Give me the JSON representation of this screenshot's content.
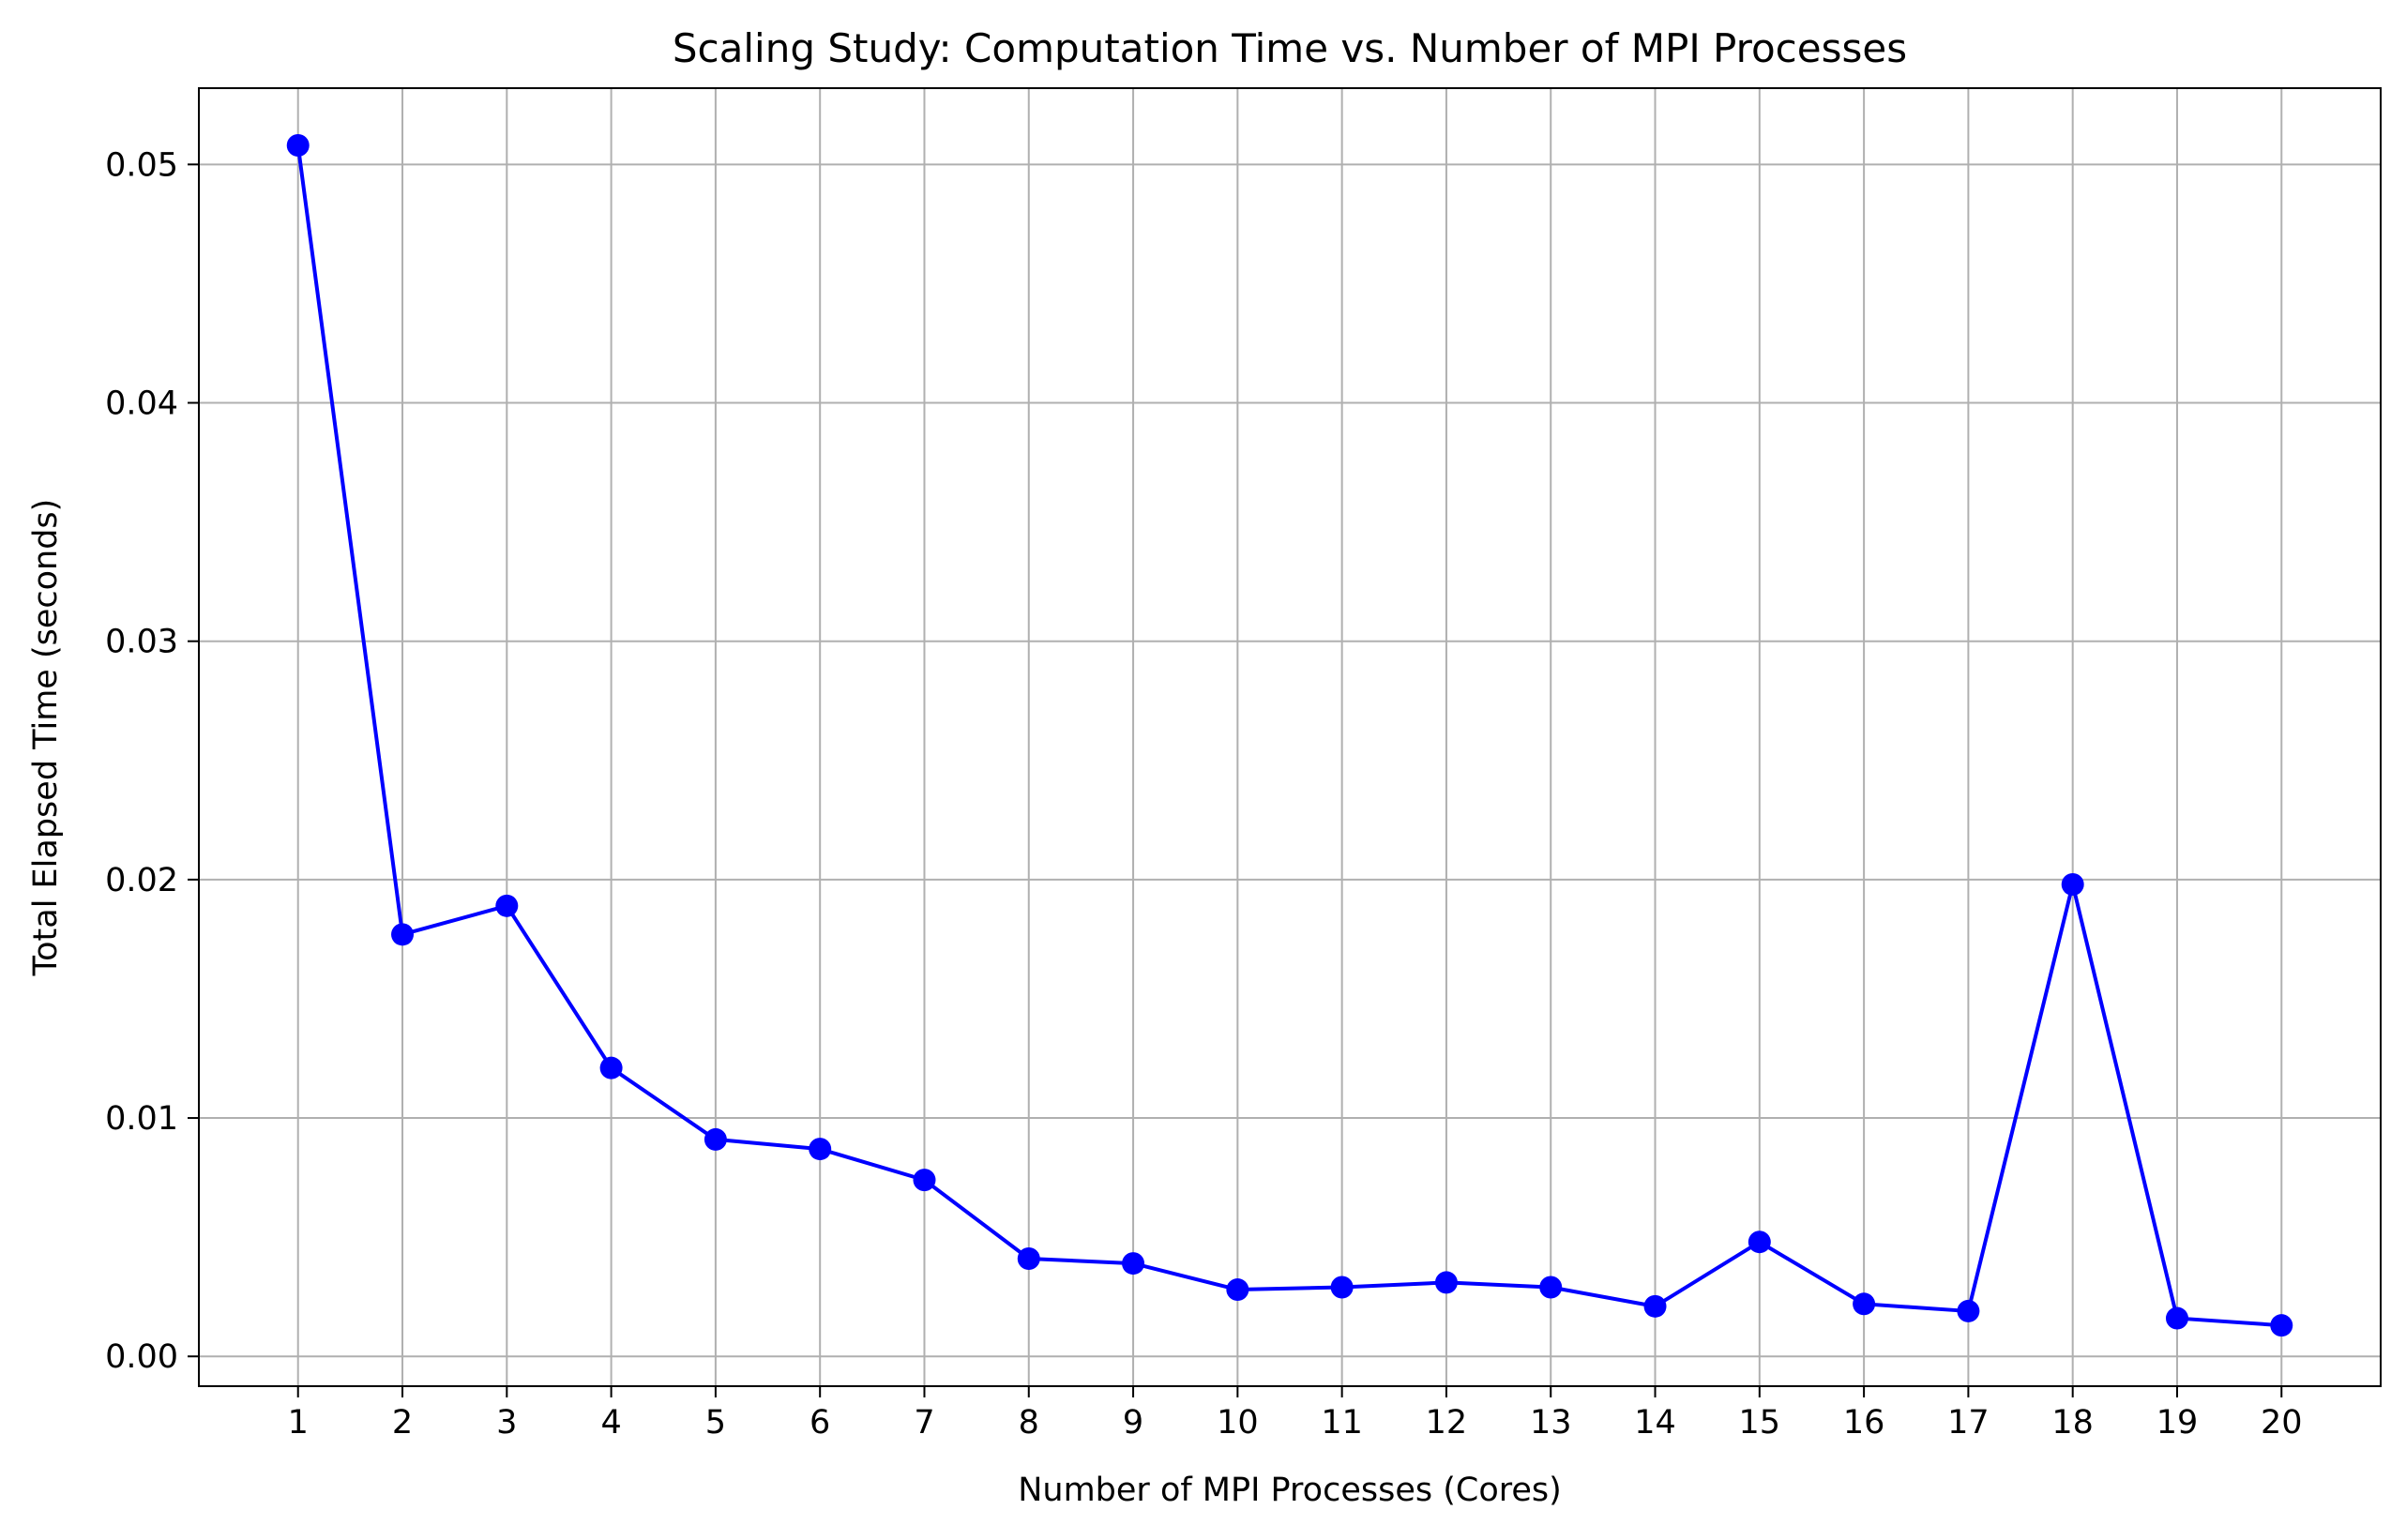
{
  "chart_data": {
    "type": "line",
    "title": "Scaling Study: Computation Time vs. Number of MPI Processes",
    "xlabel": "Number of MPI Processes (Cores)",
    "ylabel": "Total Elapsed Time (seconds)",
    "x": [
      1,
      2,
      3,
      4,
      5,
      6,
      7,
      8,
      9,
      10,
      11,
      12,
      13,
      14,
      15,
      16,
      17,
      18,
      19,
      20
    ],
    "x_tick_labels": [
      "1",
      "2",
      "3",
      "4",
      "5",
      "6",
      "7",
      "8",
      "9",
      "10",
      "11",
      "12",
      "13",
      "14",
      "15",
      "16",
      "17",
      "18",
      "19",
      "20"
    ],
    "y_ticks": [
      0.0,
      0.01,
      0.02,
      0.03,
      0.04,
      0.05
    ],
    "y_tick_labels": [
      "0.00",
      "0.01",
      "0.02",
      "0.03",
      "0.04",
      "0.05"
    ],
    "series": [
      {
        "values": [
          0.0508,
          0.0177,
          0.0189,
          0.0121,
          0.0091,
          0.0087,
          0.0074,
          0.0041,
          0.0039,
          0.0028,
          0.0029,
          0.0031,
          0.0029,
          0.0021,
          0.0048,
          0.0022,
          0.0019,
          0.0198,
          0.0016,
          0.0013
        ],
        "color": "#0000ff",
        "marker": "circle"
      }
    ],
    "xlim": [
      0.05,
      20.95
    ],
    "ylim": [
      -0.00125,
      0.0532
    ],
    "grid": true,
    "grid_color": "#b0b0b0",
    "legend": "none"
  }
}
